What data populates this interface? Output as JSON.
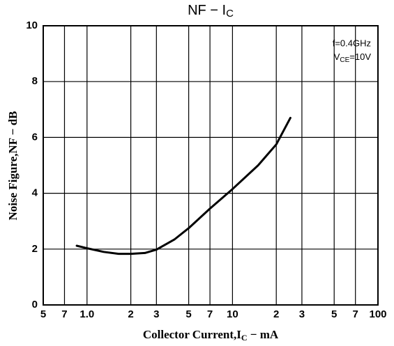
{
  "chart_data": {
    "type": "line",
    "title": {
      "main": "NF − I",
      "sub": "C"
    },
    "x_label": {
      "main": "Collector Current,I",
      "sub": "C",
      "rest": " − mA"
    },
    "y_label": "Noise Figure,NF − dB",
    "annotations": {
      "line1": "f=0.4GHz",
      "line2": {
        "main": "V",
        "sub": "CE",
        "rest": "=10V"
      }
    },
    "x": [
      0.85,
      1.0,
      1.3,
      1.65,
      2.0,
      2.5,
      3.0,
      4,
      5,
      7,
      10,
      15,
      20,
      25
    ],
    "series": [
      {
        "color": "#000000",
        "values": [
          2.12,
          2.03,
          1.9,
          1.83,
          1.83,
          1.86,
          1.98,
          2.35,
          2.75,
          3.45,
          4.15,
          5.0,
          5.75,
          6.7
        ]
      }
    ],
    "xscale": "log",
    "xlim": [
      0.5,
      100
    ],
    "xticks": [
      {
        "value": 0.5,
        "label": "5"
      },
      {
        "value": 0.7,
        "label": "7"
      },
      {
        "value": 1,
        "label": "1.0"
      },
      2,
      3,
      5,
      7,
      10,
      {
        "value": 20,
        "label": "2"
      },
      {
        "value": 30,
        "label": "3"
      },
      {
        "value": 50,
        "label": "5"
      },
      {
        "value": 70,
        "label": "7"
      },
      100
    ],
    "ylim": [
      0,
      10
    ],
    "yticks": [
      0,
      2,
      4,
      6,
      8,
      10
    ],
    "grid": true
  }
}
